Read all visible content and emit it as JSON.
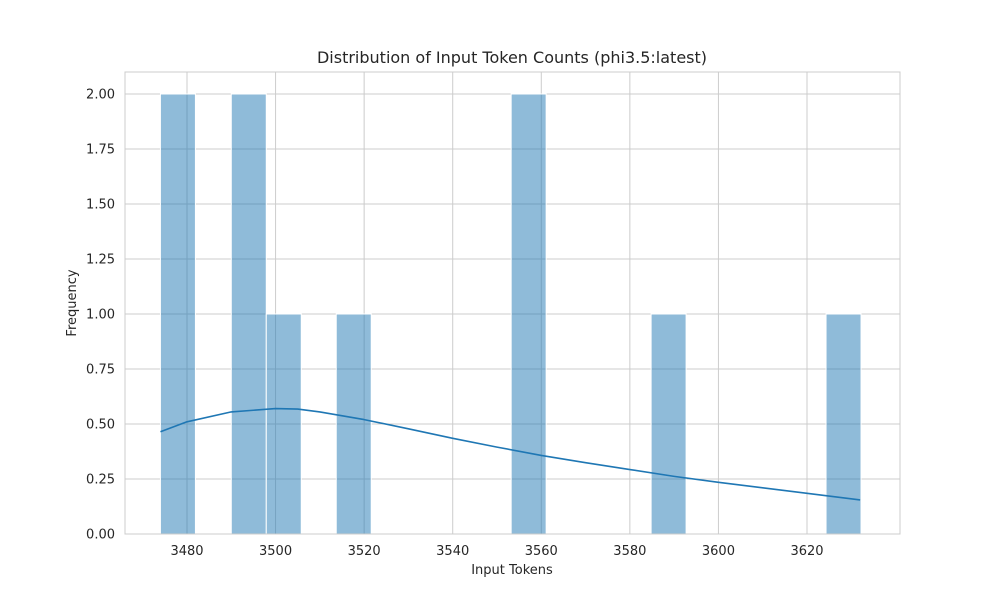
{
  "chart_data": {
    "type": "bar",
    "title": "Distribution of Input Token Counts (phi3.5:latest)",
    "xlabel": "Input Tokens",
    "ylabel": "Frequency",
    "xlim": [
      3466,
      3641
    ],
    "ylim": [
      0,
      2.1
    ],
    "xticks": [
      3480,
      3500,
      3520,
      3540,
      3560,
      3580,
      3600,
      3620
    ],
    "yticks": [
      0.0,
      0.25,
      0.5,
      0.75,
      1.0,
      1.25,
      1.5,
      1.75,
      2.0
    ],
    "ytick_labels": [
      "0.00",
      "0.25",
      "0.50",
      "0.75",
      "1.00",
      "1.25",
      "1.50",
      "1.75",
      "2.00"
    ],
    "grid": true,
    "bar_color": "#1f77b4",
    "bar_opacity": 0.5,
    "bins": [
      {
        "start": 3474.0,
        "end": 3481.9,
        "count": 2
      },
      {
        "start": 3490.0,
        "end": 3497.9,
        "count": 2
      },
      {
        "start": 3497.9,
        "end": 3505.8,
        "count": 1
      },
      {
        "start": 3513.7,
        "end": 3521.6,
        "count": 1
      },
      {
        "start": 3553.2,
        "end": 3561.1,
        "count": 2
      },
      {
        "start": 3584.8,
        "end": 3592.7,
        "count": 1
      },
      {
        "start": 3624.3,
        "end": 3632.2,
        "count": 1
      }
    ],
    "kde": {
      "color": "#1f77b4",
      "x": [
        3474,
        3480,
        3490,
        3500,
        3505,
        3510,
        3520,
        3530,
        3540,
        3550,
        3560,
        3570,
        3580,
        3590,
        3600,
        3610,
        3620,
        3632
      ],
      "y": [
        0.465,
        0.51,
        0.555,
        0.57,
        0.568,
        0.555,
        0.52,
        0.478,
        0.435,
        0.395,
        0.357,
        0.324,
        0.293,
        0.262,
        0.235,
        0.21,
        0.185,
        0.155
      ]
    }
  }
}
